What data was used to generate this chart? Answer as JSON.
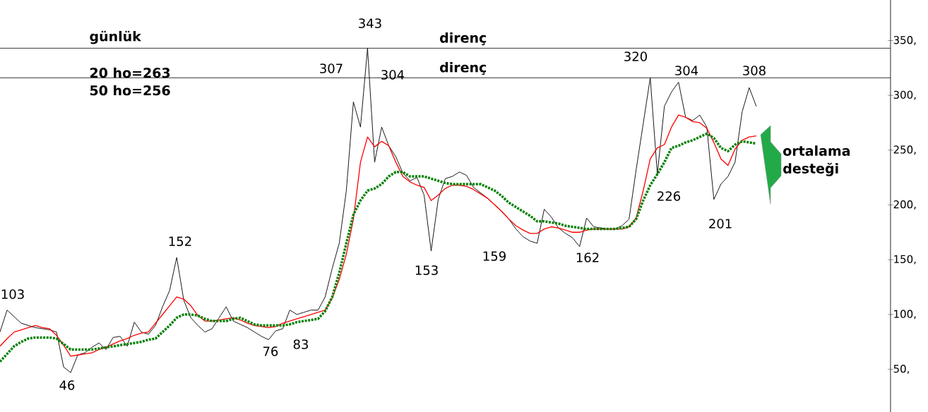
{
  "chart_data": {
    "type": "line",
    "title": "günlük",
    "categories": [
      null,
      null,
      null,
      null,
      null,
      null,
      null,
      null,
      null,
      null,
      null,
      null,
      null,
      null,
      null,
      null,
      null,
      null,
      null,
      null,
      null,
      null,
      null,
      null,
      null,
      null,
      null,
      null,
      null,
      null,
      null,
      null,
      null,
      null,
      null,
      null,
      null,
      null,
      null,
      null,
      null,
      null,
      null,
      null,
      null,
      null,
      null,
      null,
      null,
      null,
      null,
      null,
      null,
      null,
      null,
      null,
      null,
      null,
      null,
      null,
      null,
      null,
      null,
      null,
      null,
      null,
      null,
      null,
      null,
      null,
      null,
      null,
      null,
      null,
      null,
      null,
      null,
      null,
      null,
      null,
      null,
      null,
      null,
      null,
      null,
      null,
      null,
      null,
      null,
      null,
      null,
      null,
      null,
      null,
      null,
      null,
      null,
      null,
      null,
      null,
      null,
      null,
      null,
      null,
      null,
      null,
      null,
      null,
      null,
      null,
      null,
      null,
      null,
      null,
      null,
      null,
      null,
      null,
      null,
      null,
      null,
      null,
      null,
      null,
      null,
      null,
      null
    ],
    "series": [
      {
        "color": "#000000",
        "values": [
          84,
          104,
          98,
          92,
          90,
          88,
          87,
          86,
          84,
          52,
          47,
          63,
          65,
          70,
          74,
          68,
          79,
          80,
          71,
          93,
          84,
          82,
          90,
          107,
          122,
          152,
          113,
          97,
          90,
          84,
          87,
          97,
          107,
          94,
          91,
          88,
          84,
          80,
          77,
          85,
          87,
          104,
          100,
          102,
          104,
          104,
          116,
          142,
          165,
          213,
          294,
          271,
          343,
          239,
          271,
          254,
          244,
          229,
          222,
          225,
          209,
          158,
          205,
          224,
          226,
          230,
          227,
          216,
          211,
          206,
          200,
          194,
          187,
          178,
          171,
          167,
          165,
          196,
          189,
          179,
          174,
          170,
          162,
          188,
          180,
          179,
          178,
          178,
          181,
          187,
          232,
          274,
          316,
          228,
          290,
          303,
          312,
          280,
          277,
          282,
          271,
          205,
          219,
          226,
          239,
          285,
          307,
          290,
          null,
          null,
          null,
          null,
          null,
          null,
          null,
          null,
          null,
          null,
          null,
          null,
          null,
          null,
          null,
          null,
          null,
          null,
          null
        ]
      },
      {
        "color": "#ff0000",
        "values": [
          71,
          78,
          84,
          86,
          88,
          90,
          88,
          87,
          81,
          72,
          62,
          63,
          64,
          65,
          68,
          70,
          73,
          76,
          78,
          81,
          83,
          84,
          92,
          100,
          108,
          116,
          114,
          108,
          99,
          94,
          94,
          95,
          96,
          97,
          95,
          92,
          90,
          89,
          88,
          89,
          92,
          94,
          96,
          98,
          100,
          102,
          104,
          115,
          132,
          155,
          187,
          239,
          262,
          253,
          258,
          254,
          239,
          226,
          221,
          218,
          216,
          204,
          209,
          215,
          218,
          218,
          217,
          214,
          210,
          206,
          200,
          194,
          187,
          181,
          177,
          174,
          174,
          178,
          180,
          179,
          177,
          175,
          175,
          177,
          178,
          178,
          178,
          178,
          178,
          180,
          188,
          213,
          242,
          252,
          255,
          271,
          282,
          280,
          276,
          275,
          270,
          257,
          242,
          236,
          251,
          259,
          262,
          263,
          null,
          null,
          null,
          null,
          null,
          null,
          null,
          null,
          null,
          null,
          null,
          null,
          null,
          null,
          null,
          null,
          null,
          null,
          null
        ]
      },
      {
        "color": "#008000",
        "line_style": "dotted",
        "values": [
          57,
          64,
          71,
          75,
          78,
          79,
          79,
          79,
          78,
          73,
          68,
          68,
          68,
          68,
          69,
          70,
          71,
          72,
          73,
          74,
          75,
          77,
          78,
          84,
          90,
          97,
          100,
          100,
          99,
          96,
          94,
          94,
          94,
          96,
          97,
          94,
          91,
          90,
          90,
          90,
          90,
          91,
          93,
          94,
          95,
          96,
          103,
          116,
          138,
          165,
          191,
          204,
          213,
          215,
          219,
          226,
          230,
          230,
          226,
          226,
          226,
          224,
          222,
          220,
          219,
          219,
          219,
          219,
          219,
          216,
          213,
          208,
          202,
          198,
          194,
          190,
          185,
          185,
          184,
          183,
          181,
          180,
          179,
          178,
          178,
          178,
          178,
          178,
          179,
          180,
          187,
          204,
          218,
          228,
          239,
          252,
          254,
          257,
          259,
          262,
          265,
          261,
          252,
          249,
          255,
          258,
          257,
          256,
          null,
          null,
          null,
          null,
          null,
          null,
          null,
          null,
          null,
          null,
          null,
          null,
          null,
          null,
          null,
          null,
          null,
          null,
          null
        ]
      }
    ],
    "ylim": [
      11,
      387
    ],
    "yticks": [
      {
        "value": 50,
        "label": "50,"
      },
      {
        "value": 100,
        "label": "100,"
      },
      {
        "value": 150,
        "label": "150,"
      },
      {
        "value": 200,
        "label": "200,"
      },
      {
        "value": 250,
        "label": "250,"
      },
      {
        "value": 300,
        "label": "300,"
      },
      {
        "value": 350,
        "label": "350,"
      }
    ],
    "tick_labels": "y",
    "ref_lines": [
      {
        "axis": "y",
        "value": 343,
        "label": "direnç",
        "color": "#000000"
      },
      {
        "axis": "y",
        "value": 316,
        "label": "direnç",
        "color": "#000000"
      }
    ],
    "annotations": [
      "20 ho=263",
      "50 ho=256",
      "103",
      "46",
      "152",
      "76",
      "83",
      "307",
      "343",
      "304",
      "153",
      "159",
      "162",
      "320",
      "226",
      "304",
      "201",
      "308",
      "ortalama desteği"
    ]
  }
}
